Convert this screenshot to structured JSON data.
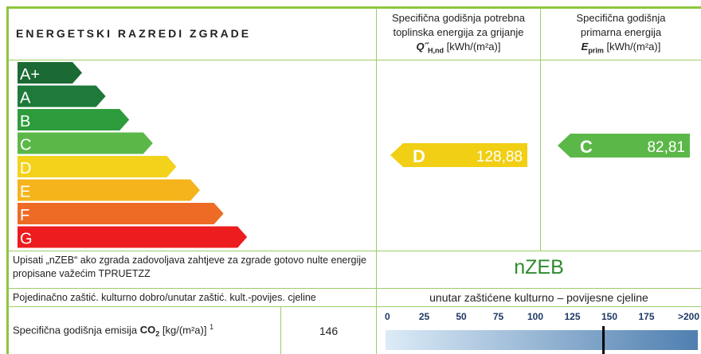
{
  "header": {
    "title": "ENERGETSKI RAZREDI ZGRADE",
    "col1": {
      "line1": "Specifična godišnja potrebna",
      "line2": "toplinska energija za grijanje",
      "symbol": "Q˝",
      "sub": "H,nd",
      "unit": "[kWh/(m²a)]"
    },
    "col2": {
      "line1": "Specifična godišnja",
      "line2": "primarna energija",
      "symbol": "E",
      "sub": "prim",
      "unit": "[kWh/(m²a)]"
    }
  },
  "classes": [
    {
      "label": "A+",
      "color": "#1b6a33"
    },
    {
      "label": "A",
      "color": "#1d7a3a"
    },
    {
      "label": "B",
      "color": "#2e9c3c"
    },
    {
      "label": "C",
      "color": "#5bb848"
    },
    {
      "label": "D",
      "color": "#f3d21c"
    },
    {
      "label": "E",
      "color": "#f5b41c"
    },
    {
      "label": "F",
      "color": "#ee6b26"
    },
    {
      "label": "G",
      "color": "#ec1c1f"
    }
  ],
  "heating": {
    "class": "D",
    "value": "128,88",
    "color": "#f0cf14"
  },
  "primary": {
    "class": "C",
    "value": "82,81",
    "color": "#5bb848"
  },
  "nzeb": {
    "text": "Upisati „nZEB“ ako zgrada zadovoljava zahtjeve za zgrade gotovo nulte energije propisane važećim TPRUETZZ",
    "value": "nZEB"
  },
  "protected": {
    "text": "Pojedinačno zaštić. kulturno dobro/unutar zaštić. kult.-povijes. cjeline",
    "value": "unutar zaštićene kulturno – povijesne cjeline"
  },
  "co2": {
    "label": "Specifična godišnja emisija",
    "symbol": "CO",
    "sub": "2",
    "unit": "[kg/(m²a)]",
    "note": "1",
    "value": 146,
    "ticks": [
      0,
      25,
      50,
      75,
      100,
      125,
      150,
      175,
      {
        "value": 200,
        "label": ">200"
      }
    ]
  }
}
